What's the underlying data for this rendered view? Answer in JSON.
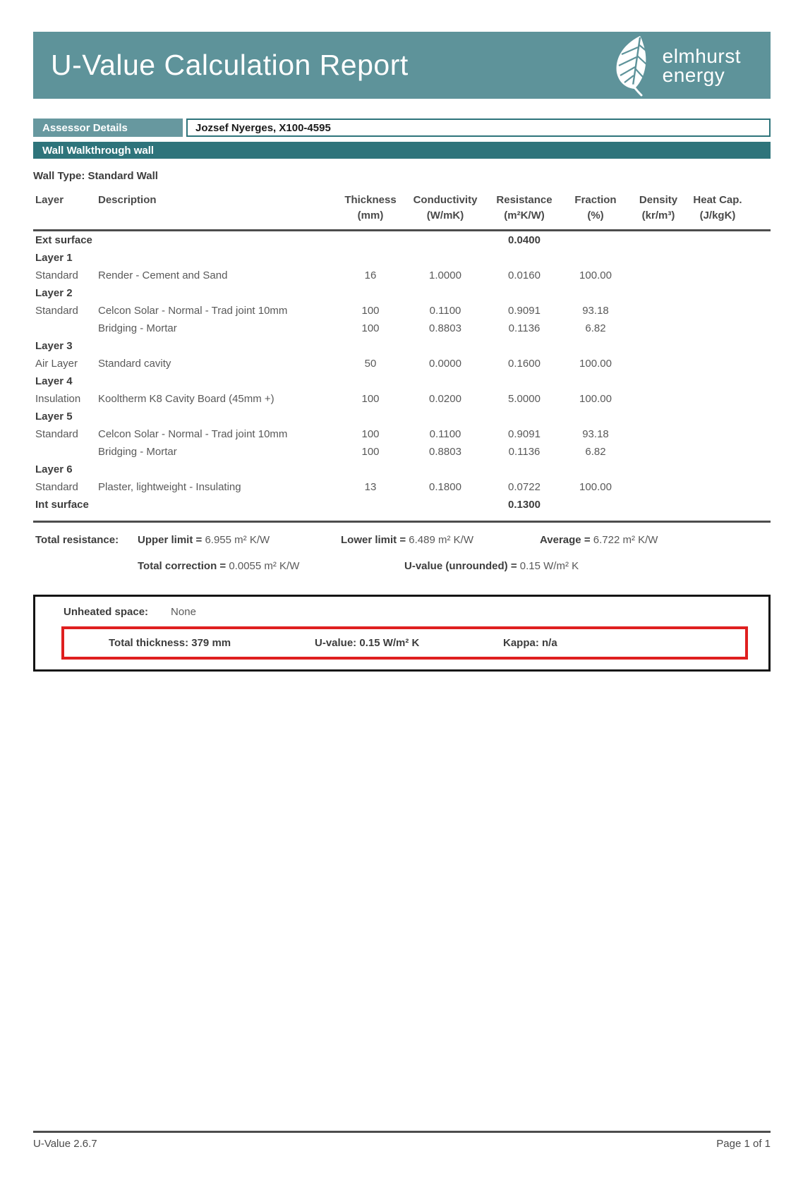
{
  "header": {
    "title": "U-Value Calculation Report",
    "logo_line1": "elmhurst",
    "logo_line2": "energy"
  },
  "assessor": {
    "label": "Assessor Details",
    "value": "Jozsef Nyerges, X100-4595"
  },
  "section_bar": "Wall Walkthrough wall",
  "wall_type": "Wall Type: Standard Wall",
  "table": {
    "columns": [
      {
        "name": "Layer",
        "unit": ""
      },
      {
        "name": "Description",
        "unit": ""
      },
      {
        "name": "Thickness",
        "unit": "(mm)"
      },
      {
        "name": "Conductivity",
        "unit": "(W/mK)"
      },
      {
        "name": "Resistance",
        "unit": "(m²K/W)"
      },
      {
        "name": "Fraction",
        "unit": "(%)"
      },
      {
        "name": "Density",
        "unit": "(kr/m³)"
      },
      {
        "name": "Heat Cap.",
        "unit": "(J/kgK)"
      }
    ],
    "rows": [
      {
        "bold": true,
        "cells": [
          "Ext surface",
          "",
          "",
          "",
          "0.0400",
          "",
          "",
          ""
        ]
      },
      {
        "bold": true,
        "cells": [
          "Layer 1",
          "",
          "",
          "",
          "",
          "",
          "",
          ""
        ]
      },
      {
        "bold": false,
        "cells": [
          "Standard",
          "Render - Cement and Sand",
          "16",
          "1.0000",
          "0.0160",
          "100.00",
          "",
          ""
        ]
      },
      {
        "bold": true,
        "cells": [
          "Layer 2",
          "",
          "",
          "",
          "",
          "",
          "",
          ""
        ]
      },
      {
        "bold": false,
        "cells": [
          "Standard",
          "Celcon Solar - Normal - Trad joint 10mm",
          "100",
          "0.1100",
          "0.9091",
          "93.18",
          "",
          ""
        ]
      },
      {
        "bold": false,
        "cells": [
          "",
          "Bridging - Mortar",
          "100",
          "0.8803",
          "0.1136",
          "6.82",
          "",
          ""
        ]
      },
      {
        "bold": true,
        "cells": [
          "Layer 3",
          "",
          "",
          "",
          "",
          "",
          "",
          ""
        ]
      },
      {
        "bold": false,
        "cells": [
          "Air Layer",
          "Standard cavity",
          "50",
          "0.0000",
          "0.1600",
          "100.00",
          "",
          ""
        ]
      },
      {
        "bold": true,
        "cells": [
          "Layer 4",
          "",
          "",
          "",
          "",
          "",
          "",
          ""
        ]
      },
      {
        "bold": false,
        "cells": [
          "Insulation",
          "Kooltherm K8 Cavity Board (45mm +)",
          "100",
          "0.0200",
          "5.0000",
          "100.00",
          "",
          ""
        ]
      },
      {
        "bold": true,
        "cells": [
          "Layer 5",
          "",
          "",
          "",
          "",
          "",
          "",
          ""
        ]
      },
      {
        "bold": false,
        "cells": [
          "Standard",
          "Celcon Solar - Normal - Trad joint 10mm",
          "100",
          "0.1100",
          "0.9091",
          "93.18",
          "",
          ""
        ]
      },
      {
        "bold": false,
        "cells": [
          "",
          "Bridging - Mortar",
          "100",
          "0.8803",
          "0.1136",
          "6.82",
          "",
          ""
        ]
      },
      {
        "bold": true,
        "cells": [
          "Layer 6",
          "",
          "",
          "",
          "",
          "",
          "",
          ""
        ]
      },
      {
        "bold": false,
        "cells": [
          "Standard",
          "Plaster, lightweight - Insulating",
          "13",
          "0.1800",
          "0.0722",
          "100.00",
          "",
          ""
        ]
      },
      {
        "bold": true,
        "cells": [
          "Int surface",
          "",
          "",
          "",
          "0.1300",
          "",
          "",
          ""
        ]
      }
    ]
  },
  "totals": {
    "resistance_label": "Total resistance:",
    "upper_label": "Upper limit =",
    "upper_value": "6.955 m² K/W",
    "lower_label": "Lower limit =",
    "lower_value": "6.489 m² K/W",
    "average_label": "Average =",
    "average_value": "6.722 m² K/W",
    "correction_label": "Total correction =",
    "correction_value": "0.0055 m² K/W",
    "uvalue_label": "U-value (unrounded) =",
    "uvalue_value": "0.15 W/m² K"
  },
  "summary_box": {
    "unheated_label": "Unheated space:",
    "unheated_value": "None",
    "thickness": "Total thickness: 379 mm",
    "uvalue": "U-value: 0.15 W/m² K",
    "kappa": "Kappa: n/a"
  },
  "footer": {
    "left": "U-Value 2.6.7",
    "right": "Page 1 of 1"
  },
  "colors": {
    "teal_header": "#5e939a",
    "teal_light": "#67989f",
    "teal_dark": "#2e747b",
    "red_highlight": "#df1f1f",
    "divider_gray": "#4d4d4d"
  }
}
